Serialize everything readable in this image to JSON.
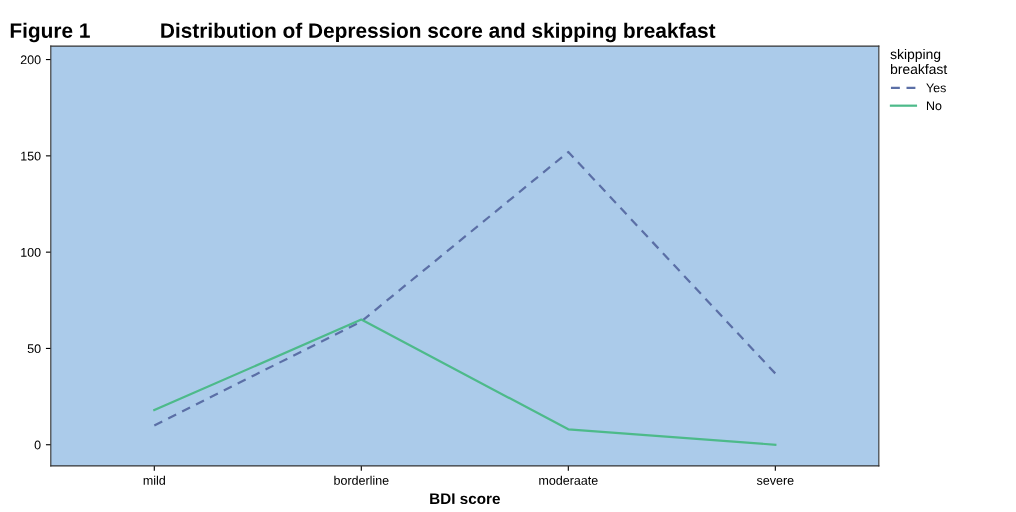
{
  "chart_data": {
    "type": "line",
    "title": "Figure 1            Distribution of Depression score and skipping breakfast",
    "xlabel": "BDI score",
    "categories": [
      "mild",
      "borderline",
      "moderaate",
      "severe"
    ],
    "series": [
      {
        "name": "Yes",
        "color": "#5b6fa6",
        "line_style": "dashed",
        "values": [
          10,
          64,
          152,
          37
        ]
      },
      {
        "name": "No",
        "color": "#4dba8a",
        "line_style": "solid",
        "values": [
          18,
          65,
          8,
          0
        ]
      }
    ],
    "ylim": [
      -11,
      207
    ],
    "yticks": [
      0,
      50,
      100,
      150,
      200
    ],
    "legend": "top right",
    "legend_title": "skipping\nbreakfast",
    "grid": false
  }
}
